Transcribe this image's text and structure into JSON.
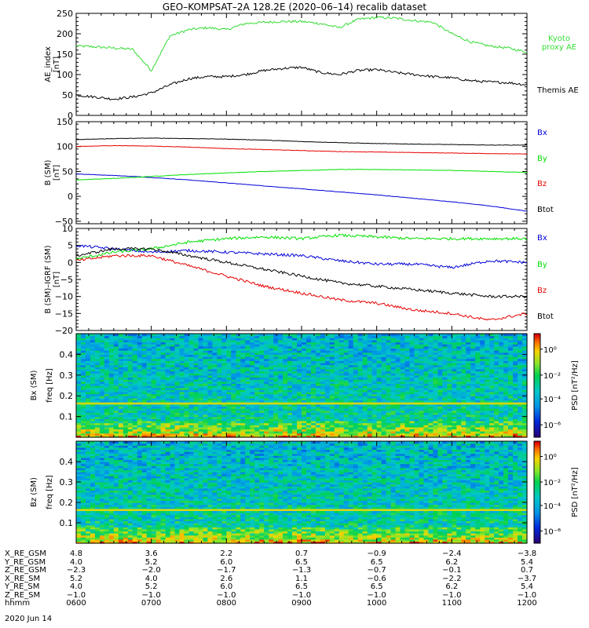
{
  "title": "GEO–KOMPSAT–2A 128.2E (2020–06–14) recalib dataset",
  "date_footer": "2020 Jun 14",
  "colors": {
    "black": "#000000",
    "red": "#e60000",
    "green": "#00e000",
    "blue": "#0000d8",
    "kyoto": "#33dd33"
  },
  "chart_data": [
    {
      "type": "line",
      "panel": "ae",
      "ylabel": "AE_index [nT]",
      "ylim": [
        0,
        250
      ],
      "yticks": [
        0,
        50,
        100,
        150,
        200,
        250
      ],
      "x_hours": [
        6,
        6.25,
        6.5,
        6.75,
        7,
        7.25,
        7.5,
        7.75,
        8,
        8.25,
        8.5,
        8.75,
        9,
        9.25,
        9.5,
        9.75,
        10,
        10.25,
        10.5,
        10.75,
        11,
        11.25,
        11.5,
        11.75,
        12
      ],
      "series": [
        {
          "name": "Kyoto proxy AE",
          "color_key": "kyoto",
          "values": [
            170,
            168,
            165,
            162,
            110,
            195,
            210,
            215,
            210,
            225,
            228,
            230,
            230,
            225,
            215,
            235,
            240,
            238,
            232,
            228,
            200,
            180,
            170,
            165,
            155
          ]
        },
        {
          "name": "Themis AE",
          "color_key": "black",
          "values": [
            50,
            45,
            40,
            45,
            55,
            75,
            90,
            95,
            95,
            100,
            110,
            115,
            118,
            105,
            100,
            110,
            112,
            105,
            100,
            95,
            92,
            85,
            82,
            80,
            75
          ]
        }
      ]
    },
    {
      "type": "line",
      "panel": "b",
      "ylabel": "B (SM) [nT]",
      "ylim": [
        -55,
        150
      ],
      "yticks": [
        -50,
        0,
        50,
        100,
        150
      ],
      "x_hours": [
        6,
        6.5,
        7,
        7.5,
        8,
        8.5,
        9,
        9.5,
        10,
        10.5,
        11,
        11.5,
        12
      ],
      "series": [
        {
          "name": "Bx",
          "color_key": "blue",
          "values": [
            45,
            42,
            38,
            33,
            27,
            21,
            15,
            9,
            3,
            -4,
            -11,
            -19,
            -30
          ]
        },
        {
          "name": "By",
          "color_key": "green",
          "values": [
            33,
            36,
            40,
            44,
            47,
            50,
            52,
            54,
            54,
            53,
            52,
            50,
            48
          ]
        },
        {
          "name": "Bz",
          "color_key": "red",
          "values": [
            100,
            102,
            101,
            99,
            96,
            94,
            92,
            90,
            89,
            88,
            87,
            86,
            85
          ]
        },
        {
          "name": "Btot",
          "color_key": "black",
          "values": [
            114,
            116,
            117,
            116,
            115,
            113,
            110,
            108,
            106,
            105,
            104,
            103,
            103
          ]
        }
      ]
    },
    {
      "type": "line",
      "panel": "db",
      "ylabel": "B (SM)–IGRF (SM) [nT]",
      "ylim": [
        -20,
        10
      ],
      "yticks": [
        -20,
        -15,
        -10,
        -5,
        0,
        5,
        10
      ],
      "x_hours": [
        6,
        6.5,
        7,
        7.5,
        8,
        8.5,
        9,
        9.5,
        10,
        10.5,
        11,
        11.5,
        12
      ],
      "series": [
        {
          "name": "Bx",
          "color_key": "blue",
          "values": [
            5,
            4,
            3,
            3.5,
            3,
            2.5,
            2,
            0.5,
            -0.5,
            -0.5,
            -1.5,
            0.5,
            0
          ]
        },
        {
          "name": "By",
          "color_key": "green",
          "values": [
            1,
            3,
            4,
            6,
            7,
            7.5,
            7,
            8,
            7.5,
            7,
            7,
            7,
            7
          ]
        },
        {
          "name": "Bz",
          "color_key": "red",
          "values": [
            0.5,
            2,
            2,
            -1,
            -4,
            -7,
            -9,
            -11,
            -12,
            -14,
            -15,
            -17,
            -15
          ]
        },
        {
          "name": "Btot",
          "color_key": "black",
          "values": [
            2,
            4,
            4,
            2,
            0,
            -2,
            -4,
            -6,
            -7,
            -8,
            -9,
            -10,
            -10
          ]
        }
      ]
    },
    {
      "type": "heatmap",
      "panel": "spec_bx",
      "ylabel": "Bx (SM) freq [Hz]",
      "ylim": [
        0,
        0.5
      ],
      "yticks": [
        0.1,
        0.2,
        0.3,
        0.4
      ],
      "colorbar_label": "PSD [nT²/Hz]",
      "colorbar_ticks": [
        "10⁰",
        "10⁻²",
        "10⁻⁴",
        "10⁻⁶"
      ],
      "line_freq": 0.167
    },
    {
      "type": "heatmap",
      "panel": "spec_bz",
      "ylabel": "Bz (SM) freq [Hz]",
      "ylim": [
        0,
        0.5
      ],
      "yticks": [
        0.1,
        0.2,
        0.3,
        0.4
      ],
      "colorbar_label": "PSD [nT²/Hz]",
      "colorbar_ticks": [
        "10⁰",
        "10⁻²",
        "10⁻⁴",
        "10⁻⁶"
      ],
      "line_freq": 0.167
    }
  ],
  "ephemeris": {
    "rows": [
      {
        "label": "X_RE_GSM",
        "values": [
          "4.8",
          "3.6",
          "2.2",
          "0.7",
          "−0.9",
          "−2.4",
          "−3.8"
        ]
      },
      {
        "label": "Y_RE_GSM",
        "values": [
          "4.0",
          "5.2",
          "6.0",
          "6.5",
          "6.5",
          "6.2",
          "5.4"
        ]
      },
      {
        "label": "Z_RE_GSM",
        "values": [
          "−2.3",
          "−2.0",
          "−1.7",
          "−1.3",
          "−0.7",
          "−0.1",
          "0.7"
        ]
      },
      {
        "label": "X_RE_SM",
        "values": [
          "5.2",
          "4.0",
          "2.6",
          "1.1",
          "−0.6",
          "−2.2",
          "−3.7"
        ]
      },
      {
        "label": "Y_RE_SM",
        "values": [
          "4.0",
          "5.2",
          "6.0",
          "6.5",
          "6.5",
          "6.2",
          "5.4"
        ]
      },
      {
        "label": "Z_RE_SM",
        "values": [
          "−1.0",
          "−1.0",
          "−1.0",
          "−1.0",
          "−1.0",
          "−1.0",
          "−1.0"
        ]
      },
      {
        "label": "hhmm",
        "values": [
          "0600",
          "0700",
          "0800",
          "0900",
          "1000",
          "1100",
          "1200"
        ]
      }
    ]
  }
}
